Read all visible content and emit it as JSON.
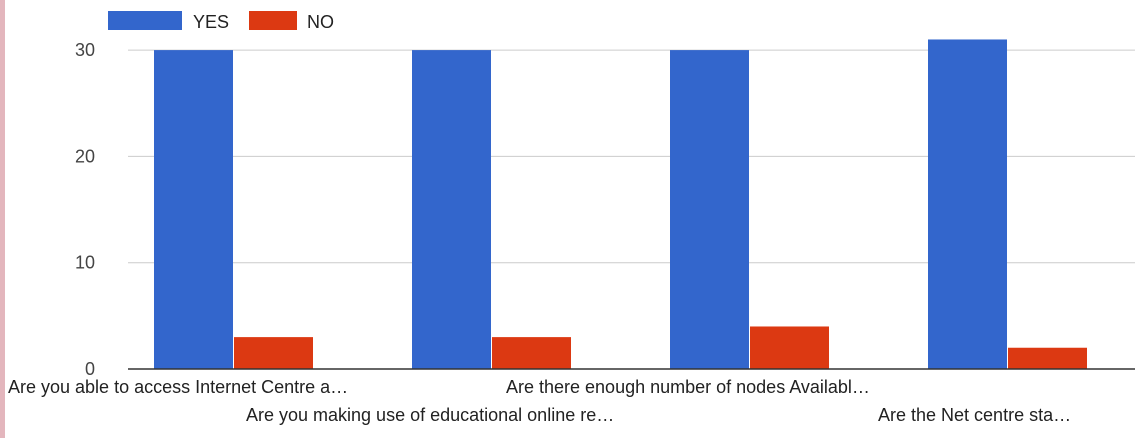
{
  "chart_data": {
    "type": "bar",
    "title": "",
    "xlabel": "",
    "ylabel": "",
    "ylim": [
      0,
      35
    ],
    "yticks": [
      0,
      10,
      20,
      30
    ],
    "grid": true,
    "legend": "top-left",
    "categories": [
      "Are you able to access Internet Centre a…",
      "Are you making use of educational online re…",
      "Are there enough number of nodes Availabl…",
      "Are the Net centre sta…"
    ],
    "series": [
      {
        "name": "YES",
        "color": "#3366cc",
        "values": [
          30,
          30,
          30,
          31
        ]
      },
      {
        "name": "NO",
        "color": "#dc3912",
        "values": [
          3,
          3,
          4,
          2
        ]
      }
    ]
  }
}
